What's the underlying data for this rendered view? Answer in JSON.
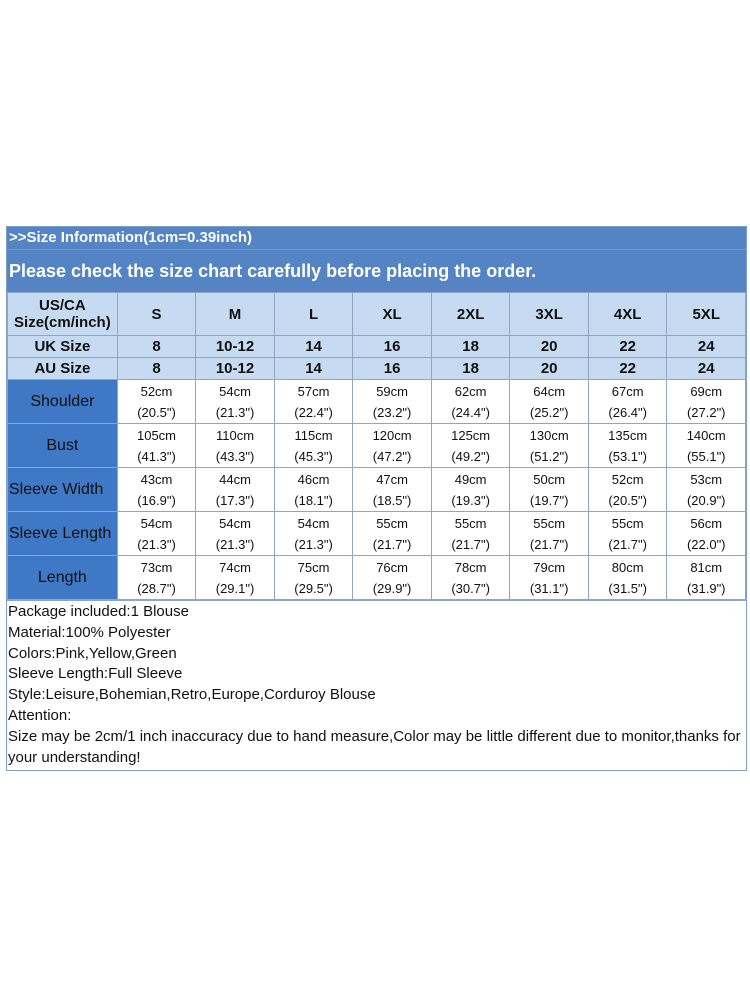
{
  "header": {
    "line1": ">>Size Information(1cm=0.39inch)",
    "line2": "Please check the size chart carefully before placing the order."
  },
  "size_row": {
    "label_line1": "US/CA",
    "label_line2": "Size(cm/inch)",
    "sizes": [
      "S",
      "M",
      "L",
      "XL",
      "2XL",
      "3XL",
      "4XL",
      "5XL"
    ]
  },
  "uk_row": {
    "label": "UK Size",
    "values": [
      "8",
      "10-12",
      "14",
      "16",
      "18",
      "20",
      "22",
      "24"
    ]
  },
  "au_row": {
    "label": "AU Size",
    "values": [
      "8",
      "10-12",
      "14",
      "16",
      "18",
      "20",
      "22",
      "24"
    ]
  },
  "measurements": [
    {
      "label": "Shoulder",
      "cm": [
        "52cm",
        "54cm",
        "57cm",
        "59cm",
        "62cm",
        "64cm",
        "67cm",
        "69cm"
      ],
      "inch": [
        "(20.5\")",
        "(21.3\")",
        "(22.4\")",
        "(23.2\")",
        "(24.4\")",
        "(25.2\")",
        "(26.4\")",
        "(27.2\")"
      ]
    },
    {
      "label": "Bust",
      "cm": [
        "105cm",
        "110cm",
        "115cm",
        "120cm",
        "125cm",
        "130cm",
        "135cm",
        "140cm"
      ],
      "inch": [
        "(41.3\")",
        "(43.3\")",
        "(45.3\")",
        "(47.2\")",
        "(49.2\")",
        "(51.2\")",
        "(53.1\")",
        "(55.1\")"
      ]
    },
    {
      "label": "Sleeve Width",
      "cm": [
        "43cm",
        "44cm",
        "46cm",
        "47cm",
        "49cm",
        "50cm",
        "52cm",
        "53cm"
      ],
      "inch": [
        "(16.9\")",
        "(17.3\")",
        "(18.1\")",
        "(18.5\")",
        "(19.3\")",
        "(19.7\")",
        "(20.5\")",
        "(20.9\")"
      ]
    },
    {
      "label": "Sleeve Length",
      "cm": [
        "54cm",
        "54cm",
        "54cm",
        "55cm",
        "55cm",
        "55cm",
        "55cm",
        "56cm"
      ],
      "inch": [
        "(21.3\")",
        "(21.3\")",
        "(21.3\")",
        "(21.7\")",
        "(21.7\")",
        "(21.7\")",
        "(21.7\")",
        "(22.0\")"
      ]
    },
    {
      "label": "Length",
      "cm": [
        "73cm",
        "74cm",
        "75cm",
        "76cm",
        "78cm",
        "79cm",
        "80cm",
        "81cm"
      ],
      "inch": [
        "(28.7\")",
        "(29.1\")",
        "(29.5\")",
        "(29.9\")",
        "(30.7\")",
        "(31.1\")",
        "(31.5\")",
        "(31.9\")"
      ]
    }
  ],
  "info": {
    "package": "Package included:1 Blouse",
    "material": "Material:100% Polyester",
    "colors": "Colors:Pink,Yellow,Green",
    "sleeve": "Sleeve Length:Full Sleeve",
    "style": "Style:Leisure,Bohemian,Retro,Europe,Corduroy Blouse",
    "attention_label": "Attention:",
    "attention_text": "Size may be 2cm/1 inch inaccuracy due to hand measure,Color may be little different due to monitor,thanks for your understanding!"
  },
  "colors": {
    "header_blue": "#5584c4",
    "light_blue": "#c6daf1",
    "row_label_blue": "#3f78c4"
  }
}
